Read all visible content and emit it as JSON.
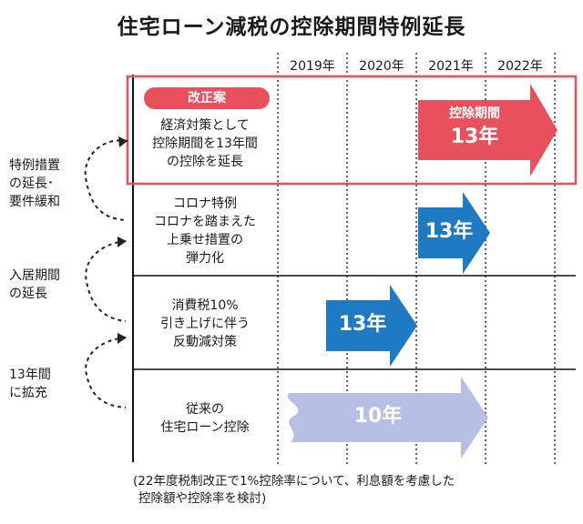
{
  "title": "住宅ローン減税の控除期間特例延長",
  "years": [
    "2019年",
    "2020年",
    "2021年",
    "2022年"
  ],
  "proposal": {
    "badge": "改正案",
    "lines": [
      "経済対策として",
      "控除期間を13年間",
      "の控除を延長"
    ],
    "arrow_line1": "控除期間",
    "arrow_line2": "13年"
  },
  "rows": [
    {
      "lines": [
        "コロナ特例",
        "コロナを踏まえた",
        "上乗せ措置の",
        "弾力化"
      ],
      "arrow": "13年"
    },
    {
      "lines": [
        "消費税10%",
        "引き上げに伴う",
        "反動減対策"
      ],
      "arrow": "13年"
    },
    {
      "lines": [
        "従来の",
        "住宅ローン控除"
      ],
      "arrow": "10年"
    }
  ],
  "side_labels": [
    {
      "lines": [
        "特例措置",
        "の延長･",
        "要件緩和"
      ]
    },
    {
      "lines": [
        "入居期間",
        "の延長"
      ]
    },
    {
      "lines": [
        "13年間",
        "に拡充"
      ]
    }
  ],
  "footnote": [
    "(22年度税制改正で1%控除率について、利息額を考慮した",
    "控除額や控除率を検討)"
  ],
  "colors": {
    "red": "#e8505b",
    "blue": "#1f7ac4",
    "lavender": "#b8bfe4"
  }
}
